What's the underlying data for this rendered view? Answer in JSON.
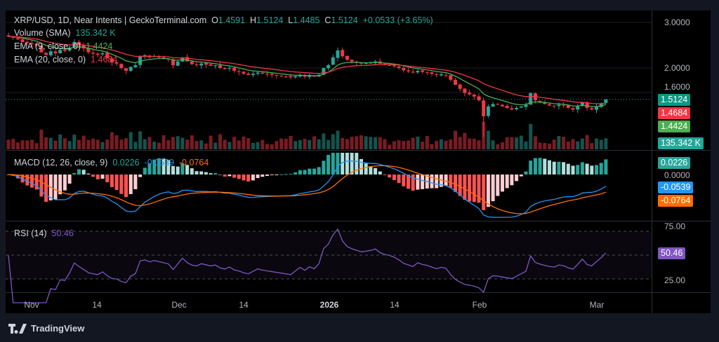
{
  "header": {
    "symbol": "XRP/USD, 1D, Near Intents | GeckoTerminal.com",
    "o_label": "O",
    "open": "1.4591",
    "h_label": "H",
    "high": "1.5124",
    "l_label": "L",
    "low": "1.4485",
    "c_label": "C",
    "close": "1.5124",
    "change": "+0.0533 (+3.65%)"
  },
  "indicators": {
    "volume": {
      "label": "Volume (SMA)",
      "value": "135.342 K"
    },
    "ema9": {
      "label": "EMA (9, close, 0)",
      "value": "1.4424"
    },
    "ema20": {
      "label": "EMA (20, close, 0)",
      "value": "1.4684"
    },
    "macd": {
      "label": "MACD (12, 26, close, 9)",
      "hist": "0.0226",
      "macd": "-0.0539",
      "signal": "-0.0764"
    },
    "rsi": {
      "label": "RSI (14)",
      "value": "50.46"
    }
  },
  "price_axis": [
    "3.0000",
    "2.0000",
    "1.6000"
  ],
  "macd_axis": [
    "0.0000"
  ],
  "rsi_axis": [
    "75.00",
    "25.00"
  ],
  "badges": {
    "price": "1.5124",
    "ema20": "1.4684",
    "ema9": "1.4424",
    "volume": "135.342 K",
    "hist": "0.0226",
    "macd": "-0.0539",
    "signal": "-0.0764",
    "rsi": "50.46"
  },
  "time_axis": [
    "Nov",
    "14",
    "Dec",
    "14",
    "2026",
    "14",
    "Feb",
    "Mar"
  ],
  "footer": {
    "brand": "TradingView"
  },
  "colors": {
    "up": "#26a69a",
    "down": "#f23645",
    "ema9": "#4caf50",
    "ema20": "#f23645",
    "macd": "#2196f3",
    "signal": "#ff6d00",
    "rsi": "#7e57c2"
  },
  "chart_data": {
    "type": "candlestick",
    "x_start": "2025-10-27",
    "interval": "1D",
    "scale": "log",
    "closes": [
      2.65,
      2.62,
      2.58,
      2.52,
      2.5,
      2.48,
      2.45,
      2.3,
      2.25,
      2.32,
      2.28,
      2.35,
      2.33,
      2.4,
      2.52,
      2.45,
      2.38,
      2.3,
      2.27,
      2.25,
      2.28,
      2.18,
      2.1,
      2.08,
      2.0,
      1.95,
      2.02,
      2.05,
      2.22,
      2.24,
      2.2,
      2.22,
      2.2,
      2.18,
      2.16,
      2.05,
      2.12,
      2.2,
      2.12,
      2.07,
      2.05,
      2.08,
      2.06,
      2.04,
      2.05,
      2.0,
      1.98,
      2.0,
      1.95,
      1.93,
      1.9,
      1.88,
      1.9,
      1.92,
      1.9,
      1.89,
      1.88,
      1.87,
      1.86,
      1.85,
      1.84,
      1.86,
      1.88,
      1.85,
      1.87,
      1.85,
      1.88,
      2.0,
      2.05,
      2.2,
      2.34,
      2.22,
      2.15,
      2.12,
      2.1,
      2.08,
      2.09,
      2.1,
      2.12,
      2.08,
      2.06,
      2.05,
      2.03,
      2.0,
      1.96,
      1.94,
      1.92,
      1.95,
      1.93,
      1.92,
      1.9,
      1.88,
      1.89,
      1.88,
      1.8,
      1.72,
      1.66,
      1.6,
      1.58,
      1.55,
      1.5,
      1.3,
      1.42,
      1.45,
      1.44,
      1.42,
      1.4,
      1.38,
      1.4,
      1.42,
      1.44,
      1.6,
      1.5,
      1.47,
      1.45,
      1.43,
      1.42,
      1.44,
      1.43,
      1.4,
      1.38,
      1.42,
      1.47,
      1.4,
      1.38,
      1.42,
      1.46,
      1.5124
    ]
  }
}
